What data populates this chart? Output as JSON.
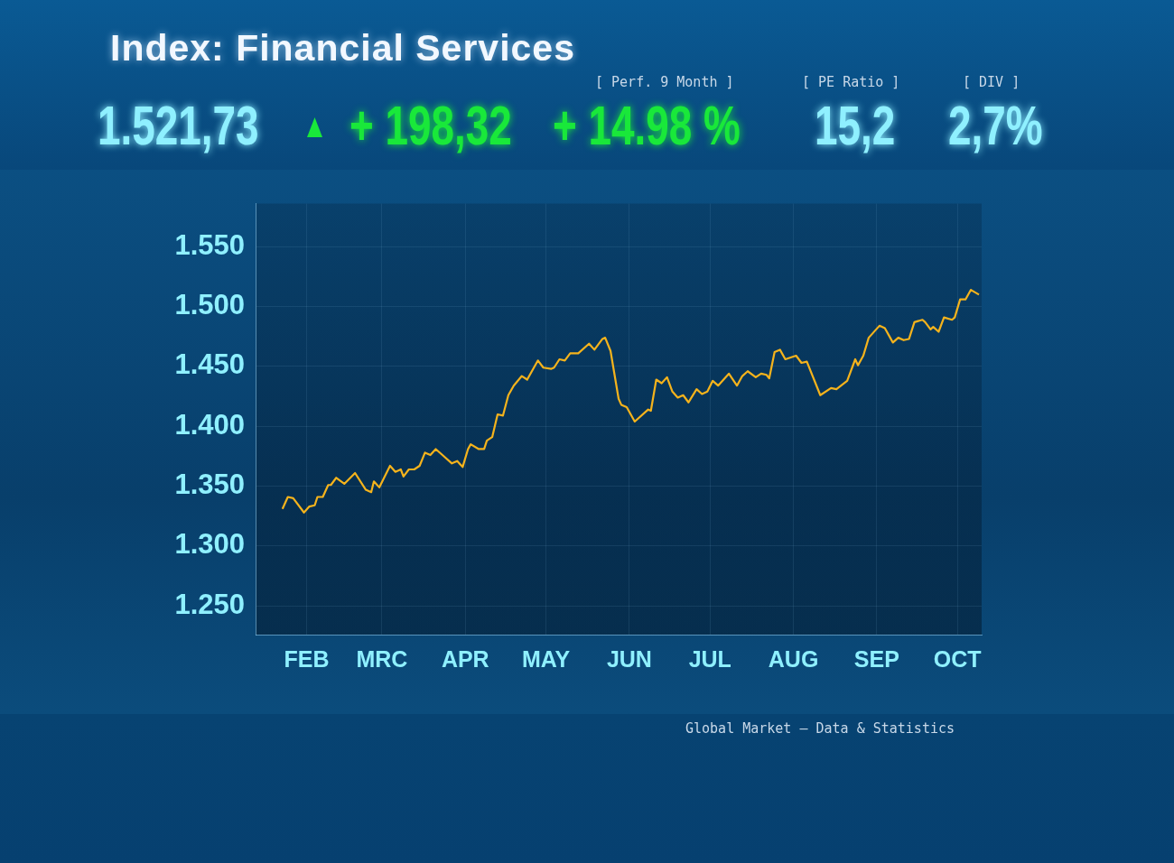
{
  "chart_data": {
    "type": "line",
    "title": "Index: Financial Services",
    "annotations": [
      "[ Perf. 9 Month ]",
      "[ PE Ratio ]",
      "[ DIV ]",
      "1.521,73",
      "+ 198,32",
      "+ 14.98 %",
      "15,2",
      "2,7%",
      "Global Market – Data & Statistics"
    ],
    "color": "#f5b31c",
    "grid": true,
    "ylim": [
      1226,
      1586
    ],
    "yticks": [
      {
        "value": 1250,
        "label": "1.250"
      },
      {
        "value": 1300,
        "label": "1.300"
      },
      {
        "value": 1350,
        "label": "1.350"
      },
      {
        "value": 1400,
        "label": "1.400"
      },
      {
        "value": 1450,
        "label": "1.450"
      },
      {
        "value": 1500,
        "label": "1.500"
      },
      {
        "value": 1550,
        "label": "1.550"
      }
    ],
    "xlim": [
      "--01-13",
      "--10-10"
    ],
    "xticks": [
      {
        "value": "--02-01",
        "label": "FEB"
      },
      {
        "value": "--03-01",
        "label": "MRC"
      },
      {
        "value": "--04-01",
        "label": "APR"
      },
      {
        "value": "--05-01",
        "label": "MAY"
      },
      {
        "value": "--06-01",
        "label": "JUN"
      },
      {
        "value": "--07-01",
        "label": "JUL"
      },
      {
        "value": "--08-01",
        "label": "AUG"
      },
      {
        "value": "--09-01",
        "label": "SEP"
      },
      {
        "value": "--10-01",
        "label": "OCT"
      }
    ],
    "x": [
      "--01-23",
      "--01-25",
      "--01-27",
      "--01-31",
      "--02-02",
      "--02-04",
      "--02-05",
      "--02-07",
      "--02-09",
      "--02-10",
      "--02-12",
      "--02-15",
      "--02-19",
      "--02-23",
      "--02-25",
      "--02-26",
      "--02-28",
      "--03-04",
      "--03-06",
      "--03-08",
      "--03-09",
      "--03-11",
      "--03-13",
      "--03-15",
      "--03-17",
      "--03-19",
      "--03-21",
      "--03-23",
      "--03-27",
      "--03-29",
      "--03-31",
      "--04-02",
      "--04-03",
      "--04-06",
      "--04-08",
      "--04-09",
      "--04-11",
      "--04-13",
      "--04-15",
      "--04-17",
      "--04-19",
      "--04-22",
      "--04-24",
      "--04-28",
      "--04-30",
      "--05-03",
      "--05-04",
      "--05-06",
      "--05-08",
      "--05-10",
      "--05-13",
      "--05-17",
      "--05-19",
      "--05-22",
      "--05-23",
      "--05-25",
      "--05-28",
      "--05-29",
      "--05-31",
      "--06-03",
      "--06-08",
      "--06-09",
      "--06-11",
      "--06-13",
      "--06-15",
      "--06-17",
      "--06-19",
      "--06-21",
      "--06-23",
      "--06-26",
      "--06-28",
      "--06-30",
      "--07-02",
      "--07-04",
      "--07-08",
      "--07-11",
      "--07-13",
      "--07-15",
      "--07-18",
      "--07-20",
      "--07-22",
      "--07-23",
      "--07-25",
      "--07-27",
      "--07-29",
      "--08-02",
      "--08-04",
      "--08-06",
      "--08-11",
      "--08-15",
      "--08-17",
      "--08-21",
      "--08-24",
      "--08-25",
      "--08-27",
      "--08-29",
      "--09-02",
      "--09-04",
      "--09-06",
      "--09-07",
      "--09-09",
      "--09-11",
      "--09-13",
      "--09-15",
      "--09-18",
      "--09-19",
      "--09-21",
      "--09-22",
      "--09-24",
      "--09-26",
      "--09-29",
      "--09-30",
      "--10-02",
      "--10-04",
      "--10-06",
      "--10-09"
    ],
    "values": [
      1331,
      1341,
      1340,
      1328,
      1333,
      1334,
      1341,
      1341,
      1351,
      1351,
      1357,
      1352,
      1361,
      1347,
      1345,
      1354,
      1349,
      1367,
      1362,
      1364,
      1358,
      1364,
      1364,
      1367,
      1378,
      1376,
      1381,
      1377,
      1369,
      1371,
      1366,
      1381,
      1385,
      1381,
      1381,
      1388,
      1391,
      1410,
      1409,
      1426,
      1434,
      1442,
      1439,
      1455,
      1449,
      1448,
      1449,
      1456,
      1455,
      1461,
      1461,
      1469,
      1464,
      1473,
      1474,
      1463,
      1423,
      1418,
      1416,
      1404,
      1414,
      1413,
      1439,
      1436,
      1441,
      1429,
      1424,
      1426,
      1420,
      1431,
      1427,
      1429,
      1438,
      1434,
      1444,
      1434,
      1442,
      1446,
      1441,
      1444,
      1443,
      1440,
      1462,
      1464,
      1456,
      1459,
      1453,
      1454,
      1426,
      1432,
      1431,
      1438,
      1456,
      1451,
      1459,
      1474,
      1484,
      1482,
      1474,
      1470,
      1474,
      1472,
      1473,
      1487,
      1489,
      1487,
      1481,
      1483,
      1479,
      1491,
      1489,
      1491,
      1506,
      1506,
      1514,
      1510
    ]
  }
}
